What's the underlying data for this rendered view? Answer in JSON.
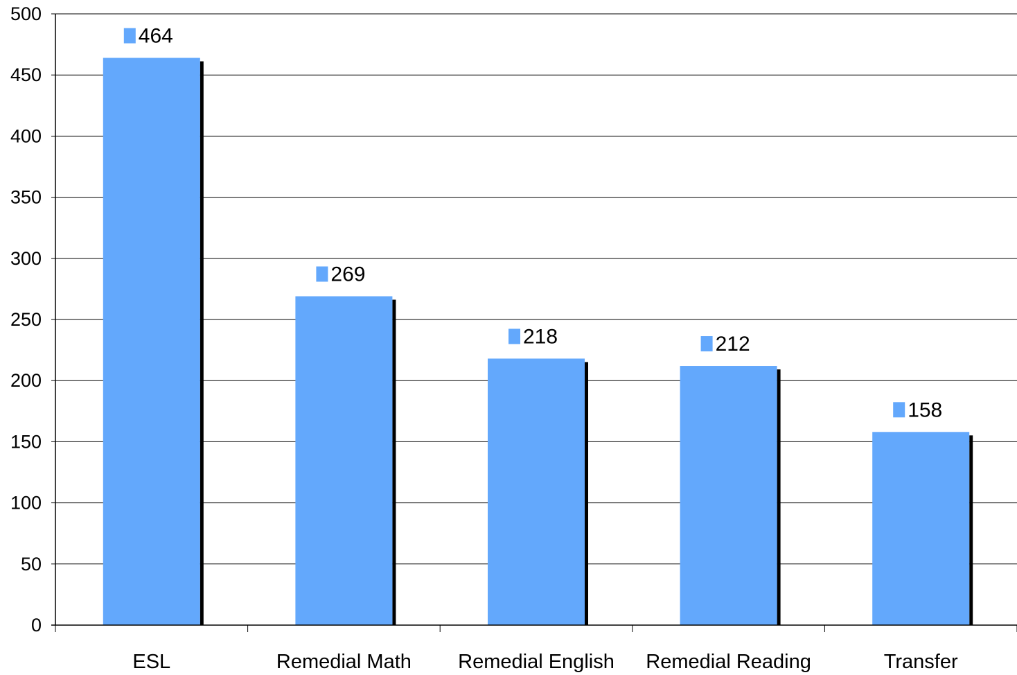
{
  "chart_data": {
    "type": "bar",
    "categories": [
      "ESL",
      "Remedial Math",
      "Remedial English",
      "Remedial Reading",
      "Transfer"
    ],
    "series": [
      {
        "values": [
          464,
          269,
          218,
          212,
          158
        ]
      }
    ],
    "data_labels": [
      "464",
      "269",
      "218",
      "212",
      "158"
    ],
    "y_ticks": [
      "0",
      "50",
      "100",
      "150",
      "200",
      "250",
      "300",
      "350",
      "400",
      "450",
      "500"
    ],
    "ylim": [
      0,
      500
    ],
    "ytick_step": 50,
    "grid": true,
    "legend": false,
    "title": "",
    "xlabel": "",
    "ylabel": "",
    "colors": {
      "bar": "#63a8fc",
      "bar_shadow": "#000000",
      "grid": "#000000",
      "axis": "#000000"
    }
  }
}
